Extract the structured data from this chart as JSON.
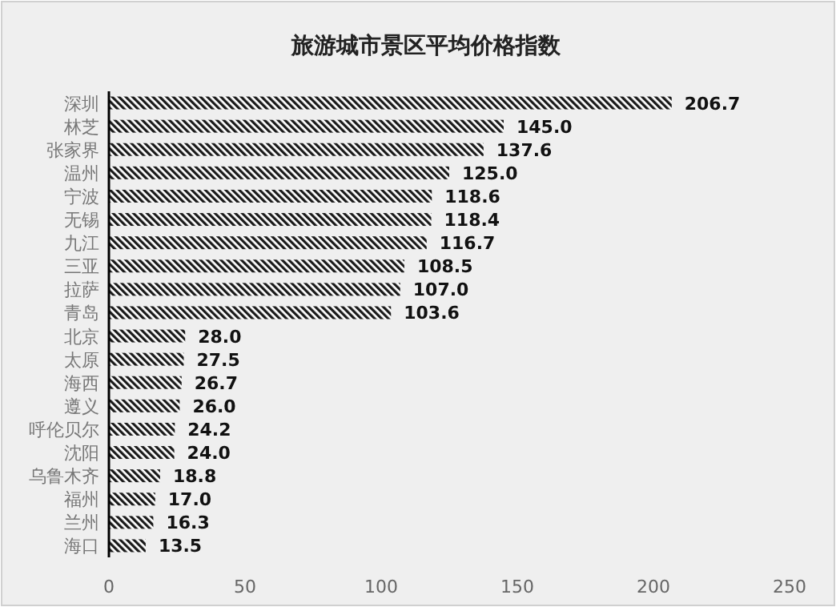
{
  "chart_data": {
    "type": "bar",
    "orientation": "horizontal",
    "title": "旅游城市景区平均价格指数",
    "categories": [
      "深圳",
      "林芝",
      "张家界",
      "温州",
      "宁波",
      "无锡",
      "九江",
      "三亚",
      "拉萨",
      "青岛",
      "北京",
      "太原",
      "海西",
      "遵义",
      "呼伦贝尔",
      "沈阳",
      "乌鲁木齐",
      "福州",
      "兰州",
      "海口"
    ],
    "values": [
      206.7,
      145.0,
      137.6,
      125.0,
      118.6,
      118.4,
      116.7,
      108.5,
      107.0,
      103.6,
      28.0,
      27.5,
      26.7,
      26.0,
      24.2,
      24.0,
      18.8,
      17.0,
      16.3,
      13.5
    ],
    "value_labels": [
      "206.7",
      "145.0",
      "137.6",
      "125.0",
      "118.6",
      "118.4",
      "116.7",
      "108.5",
      "107.0",
      "103.6",
      "28.0",
      "27.5",
      "26.7",
      "26.0",
      "24.2",
      "24.0",
      "18.8",
      "17.0",
      "16.3",
      "13.5"
    ],
    "color": "#1a1a1a",
    "xlim": [
      0,
      250
    ],
    "xticks": [
      0,
      50,
      100,
      150,
      200,
      250
    ]
  }
}
